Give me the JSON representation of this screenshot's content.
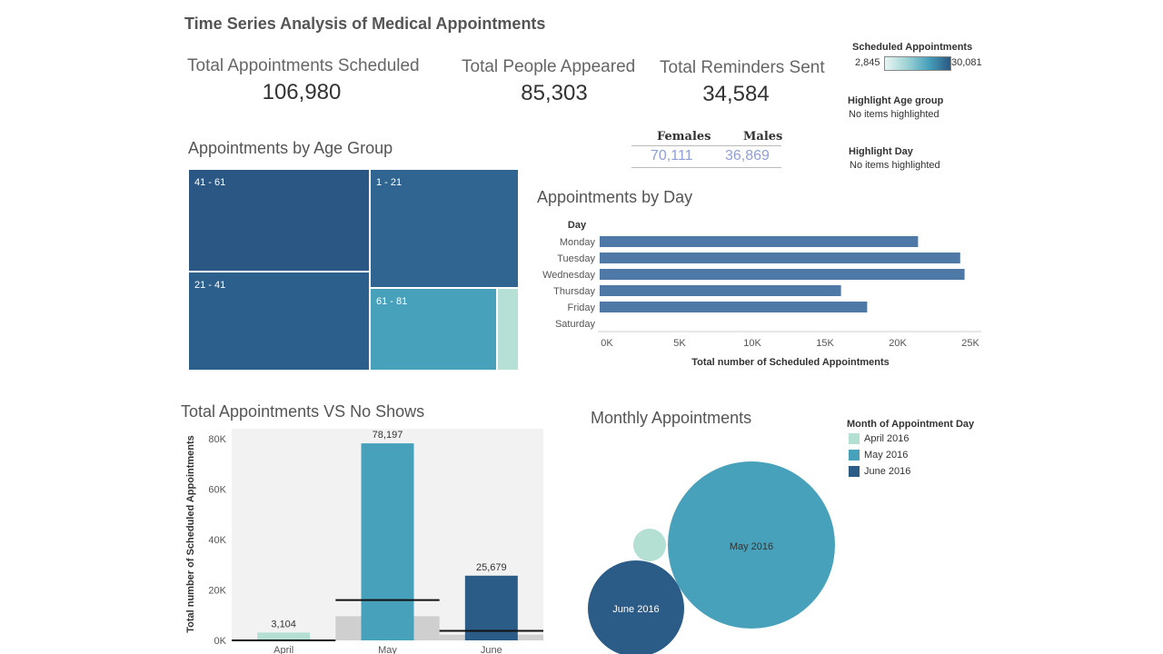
{
  "title": "Time Series Analysis of Medical Appointments",
  "kpis": [
    {
      "label": "Total Appointments Scheduled",
      "value": "106,980"
    },
    {
      "label": "Total People Appeared",
      "value": "85,303"
    },
    {
      "label": "Total Reminders Sent",
      "value": "34,584"
    }
  ],
  "gender": {
    "females_label": "Females",
    "males_label": "Males",
    "females_value": "70,111",
    "males_value": "36,869"
  },
  "legend_scheduled": {
    "title": "Scheduled Appointments",
    "min": "2,845",
    "max": "30,081"
  },
  "highlight_age": {
    "title": "Highlight Age group",
    "value": "No items highlighted"
  },
  "highlight_day": {
    "title": "Highlight Day",
    "value": "No items highlighted"
  },
  "age_chart": {
    "title": "Appointments by Age Group",
    "labels": {
      "a41_61": "41 - 61",
      "a1_21": "1 - 21",
      "a21_41": "21 - 41",
      "a61_81": "61 - 81"
    },
    "colors": {
      "dark": "#2a5783",
      "mid": "#2f6590",
      "teal": "#47a1bb",
      "light": "#b6e0d5"
    }
  },
  "month_legend": {
    "title": "Month of Appointment Day",
    "items": [
      {
        "label": "April 2016",
        "color": "#b3e0d3"
      },
      {
        "label": "May 2016",
        "color": "#47a1bb"
      },
      {
        "label": "June 2016",
        "color": "#2b5c87"
      }
    ]
  },
  "bubbles": {
    "title": "Monthly Appointments",
    "may_label": "May 2016",
    "june_label": "June 2016"
  },
  "chart_data": [
    {
      "type": "bar",
      "title": "Appointments by Day",
      "orientation": "horizontal",
      "category_header": "Day",
      "categories": [
        "Monday",
        "Tuesday",
        "Wednesday",
        "Thursday",
        "Friday",
        "Saturday"
      ],
      "values": [
        21900,
        24800,
        25100,
        16600,
        18400,
        0
      ],
      "xlabel": "Total number of Scheduled Appointments",
      "xlim": [
        0,
        25000
      ],
      "ticks": [
        "0K",
        "5K",
        "10K",
        "15K",
        "20K",
        "25K"
      ],
      "color": "#4e79a7"
    },
    {
      "type": "bar",
      "title": "Total Appointments VS No Shows",
      "categories": [
        "April",
        "May",
        "June"
      ],
      "values": [
        3104,
        78197,
        25679
      ],
      "value_labels": [
        "3,104",
        "78,197",
        "25,679"
      ],
      "ylabel": "Total number of Scheduled Appointments",
      "ylim": [
        0,
        84000
      ],
      "ticks": [
        "0K",
        "20K",
        "40K",
        "60K",
        "80K"
      ],
      "colors": [
        "#b3e0d3",
        "#47a1bb",
        "#2b5c87"
      ],
      "reference_values": [
        0,
        16000,
        3800
      ]
    }
  ]
}
